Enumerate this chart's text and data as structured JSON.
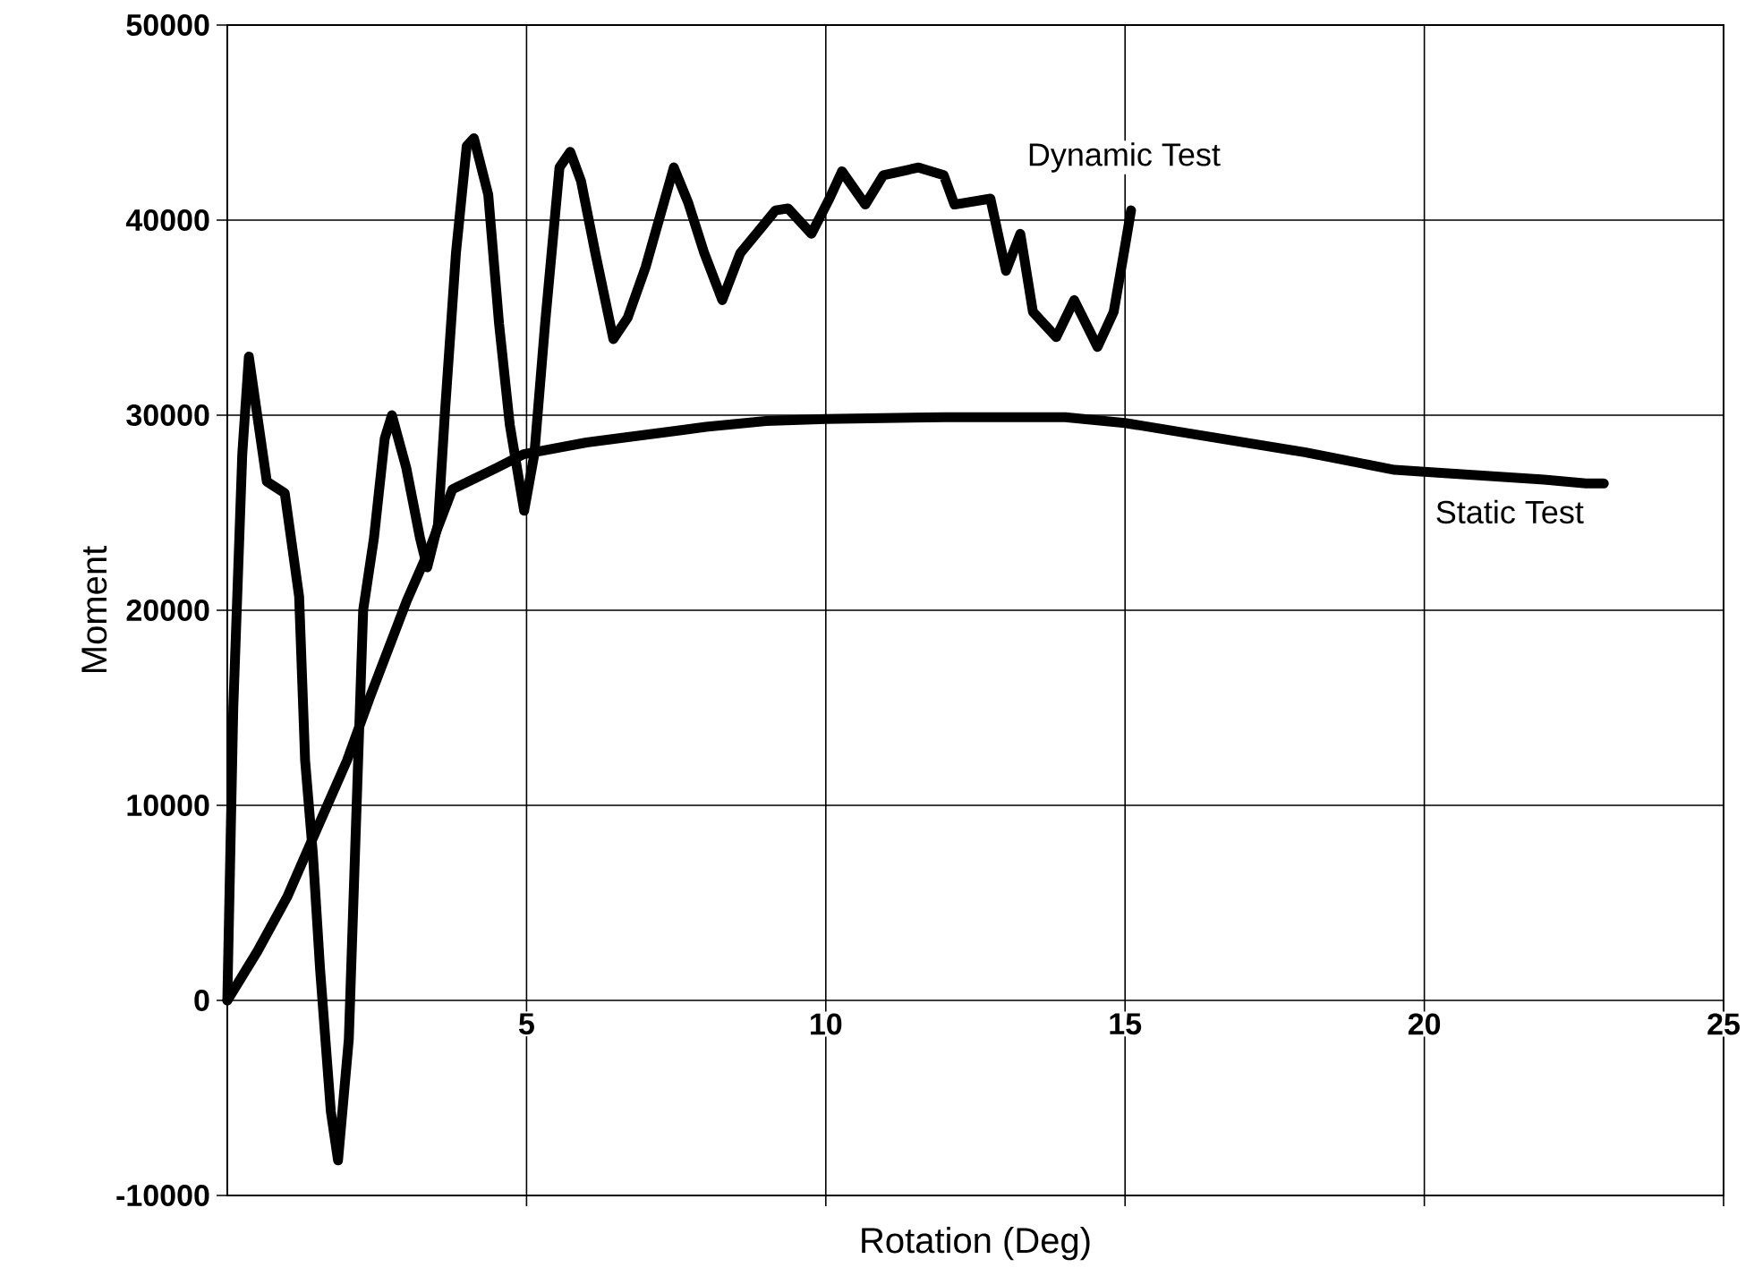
{
  "chart_data": {
    "type": "line",
    "xlabel": "Rotation (Deg)",
    "ylabel": "Moment",
    "xlim": [
      0,
      25
    ],
    "ylim": [
      -10000,
      50000
    ],
    "xticks": [
      5,
      10,
      15,
      20,
      25
    ],
    "yticks": [
      -10000,
      0,
      10000,
      20000,
      30000,
      40000,
      50000
    ],
    "grid": true,
    "legend": false,
    "marker": "none",
    "line_style": "solid",
    "series": [
      {
        "name": "Dynamic Test",
        "color": "#000000",
        "x": [
          0,
          0.1,
          0.25,
          0.36,
          0.5,
          0.66,
          0.96,
          1.2,
          1.3,
          1.43,
          1.55,
          1.73,
          1.85,
          2.03,
          2.15,
          2.27,
          2.45,
          2.63,
          2.75,
          2.99,
          3.22,
          3.34,
          3.52,
          3.64,
          3.82,
          4.0,
          4.12,
          4.36,
          4.54,
          4.72,
          4.96,
          5.13,
          5.31,
          5.55,
          5.73,
          5.91,
          6.15,
          6.45,
          6.69,
          6.99,
          7.46,
          7.7,
          7.97,
          8.27,
          8.57,
          9.16,
          9.37,
          9.76,
          10.06,
          10.27,
          10.66,
          10.96,
          11.55,
          11.97,
          12.15,
          12.75,
          13.01,
          13.25,
          13.46,
          13.85,
          14.15,
          14.54,
          14.81,
          14.99,
          15.1
        ],
        "values": [
          0,
          15000,
          28000,
          33000,
          30000,
          26600,
          26000,
          20700,
          12300,
          7500,
          1600,
          -5700,
          -8200,
          -2000,
          9000,
          20000,
          23700,
          28800,
          30000,
          27300,
          23700,
          22200,
          24400,
          30300,
          38300,
          43800,
          44200,
          41300,
          34700,
          29500,
          25100,
          28000,
          34700,
          42700,
          43500,
          42000,
          38300,
          33900,
          35000,
          37600,
          42700,
          40900,
          38300,
          35900,
          38300,
          40500,
          40600,
          39300,
          41100,
          42500,
          40800,
          42300,
          42700,
          42300,
          40800,
          41100,
          37400,
          39300,
          35300,
          34000,
          35900,
          33500,
          35300,
          38500,
          40500
        ]
      },
      {
        "name": "Static Test",
        "color": "#000000",
        "x": [
          0,
          0.5,
          1,
          1.37,
          2,
          2.39,
          3,
          3.4,
          3.76,
          4.5,
          4.95,
          6,
          7,
          8,
          9,
          10,
          12,
          14,
          15,
          16,
          18,
          19.5,
          20,
          22,
          22.7,
          23
        ],
        "values": [
          0,
          2500,
          5300,
          7900,
          12300,
          15600,
          20500,
          23300,
          26200,
          27300,
          28000,
          28600,
          29000,
          29400,
          29700,
          29800,
          29900,
          29900,
          29600,
          29100,
          28100,
          27200,
          27100,
          26700,
          26500,
          26500
        ]
      }
    ]
  }
}
